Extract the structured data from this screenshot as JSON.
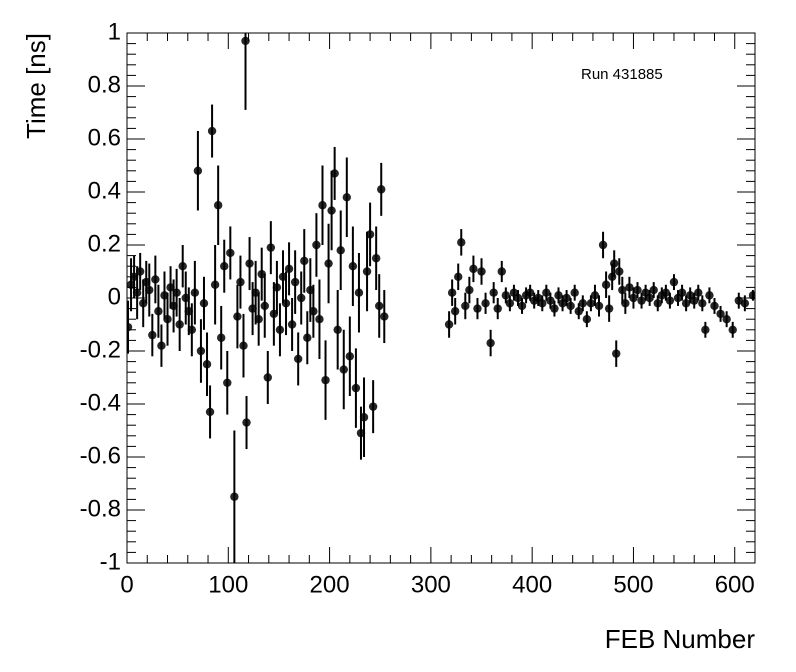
{
  "chart_data": {
    "type": "scatter",
    "title": "Run 431885",
    "x_label": "FEB Number",
    "y_label": "Time [ns]",
    "xlim": [
      0,
      620
    ],
    "xticks": [
      0,
      100,
      200,
      300,
      400,
      500,
      600
    ],
    "ylim": [
      -1,
      1
    ],
    "yticks": [
      -1,
      -0.8,
      -0.6,
      -0.4,
      -0.2,
      0,
      0.2,
      0.4,
      0.6,
      0.8,
      1
    ],
    "color": "#000000",
    "points": [
      {
        "x": 1,
        "y": -0.11,
        "error": 0.1
      },
      {
        "x": 4,
        "y": 0.05,
        "error": 0.1
      },
      {
        "x": 7,
        "y": 0.08,
        "error": 0.08
      },
      {
        "x": 10,
        "y": 0.02,
        "error": 0.1
      },
      {
        "x": 13,
        "y": 0.1,
        "error": 0.07
      },
      {
        "x": 16,
        "y": -0.02,
        "error": 0.09
      },
      {
        "x": 19,
        "y": 0.06,
        "error": 0.08
      },
      {
        "x": 22,
        "y": 0.03,
        "error": 0.1
      },
      {
        "x": 25,
        "y": -0.14,
        "error": 0.08
      },
      {
        "x": 28,
        "y": 0.07,
        "error": 0.09
      },
      {
        "x": 31,
        "y": -0.05,
        "error": 0.1
      },
      {
        "x": 34,
        "y": -0.18,
        "error": 0.08
      },
      {
        "x": 37,
        "y": 0.01,
        "error": 0.09
      },
      {
        "x": 40,
        "y": -0.08,
        "error": 0.1
      },
      {
        "x": 43,
        "y": 0.04,
        "error": 0.08
      },
      {
        "x": 46,
        "y": -0.03,
        "error": 0.1
      },
      {
        "x": 49,
        "y": 0.02,
        "error": 0.09
      },
      {
        "x": 52,
        "y": -0.1,
        "error": 0.1
      },
      {
        "x": 55,
        "y": 0.12,
        "error": 0.08
      },
      {
        "x": 58,
        "y": 0.0,
        "error": 0.1
      },
      {
        "x": 61,
        "y": -0.05,
        "error": 0.09
      },
      {
        "x": 64,
        "y": -0.12,
        "error": 0.1
      },
      {
        "x": 67,
        "y": 0.02,
        "error": 0.12
      },
      {
        "x": 70,
        "y": 0.48,
        "error": 0.15
      },
      {
        "x": 73,
        "y": -0.2,
        "error": 0.12
      },
      {
        "x": 76,
        "y": -0.02,
        "error": 0.1
      },
      {
        "x": 79,
        "y": -0.25,
        "error": 0.12
      },
      {
        "x": 82,
        "y": -0.43,
        "error": 0.1
      },
      {
        "x": 84,
        "y": 0.63,
        "error": 0.1
      },
      {
        "x": 87,
        "y": 0.05,
        "error": 0.15
      },
      {
        "x": 90,
        "y": 0.35,
        "error": 0.15
      },
      {
        "x": 93,
        "y": -0.15,
        "error": 0.12
      },
      {
        "x": 96,
        "y": 0.12,
        "error": 0.1
      },
      {
        "x": 99,
        "y": -0.32,
        "error": 0.12
      },
      {
        "x": 102,
        "y": 0.17,
        "error": 0.1
      },
      {
        "x": 106,
        "y": -0.75,
        "error": 0.25
      },
      {
        "x": 109,
        "y": -0.07,
        "error": 0.12
      },
      {
        "x": 112,
        "y": 0.06,
        "error": 0.1
      },
      {
        "x": 115,
        "y": -0.18,
        "error": 0.12
      },
      {
        "x": 117,
        "y": 0.97,
        "error": 0.26
      },
      {
        "x": 118,
        "y": -0.47,
        "error": 0.1
      },
      {
        "x": 121,
        "y": 0.13,
        "error": 0.1
      },
      {
        "x": 124,
        "y": -0.04,
        "error": 0.1
      },
      {
        "x": 127,
        "y": 0.02,
        "error": 0.12
      },
      {
        "x": 130,
        "y": -0.08,
        "error": 0.1
      },
      {
        "x": 133,
        "y": 0.09,
        "error": 0.1
      },
      {
        "x": 136,
        "y": -0.03,
        "error": 0.12
      },
      {
        "x": 139,
        "y": -0.3,
        "error": 0.1
      },
      {
        "x": 142,
        "y": 0.19,
        "error": 0.1
      },
      {
        "x": 145,
        "y": -0.06,
        "error": 0.12
      },
      {
        "x": 148,
        "y": 0.04,
        "error": 0.1
      },
      {
        "x": 151,
        "y": -0.12,
        "error": 0.1
      },
      {
        "x": 154,
        "y": 0.08,
        "error": 0.1
      },
      {
        "x": 157,
        "y": -0.02,
        "error": 0.12
      },
      {
        "x": 160,
        "y": 0.11,
        "error": 0.1
      },
      {
        "x": 163,
        "y": -0.1,
        "error": 0.1
      },
      {
        "x": 166,
        "y": 0.06,
        "error": 0.12
      },
      {
        "x": 169,
        "y": -0.23,
        "error": 0.1
      },
      {
        "x": 172,
        "y": 0.0,
        "error": 0.1
      },
      {
        "x": 175,
        "y": 0.14,
        "error": 0.12
      },
      {
        "x": 178,
        "y": -0.15,
        "error": 0.1
      },
      {
        "x": 181,
        "y": 0.03,
        "error": 0.12
      },
      {
        "x": 184,
        "y": -0.05,
        "error": 0.1
      },
      {
        "x": 187,
        "y": 0.2,
        "error": 0.12
      },
      {
        "x": 190,
        "y": -0.08,
        "error": 0.15
      },
      {
        "x": 193,
        "y": 0.35,
        "error": 0.15
      },
      {
        "x": 196,
        "y": -0.31,
        "error": 0.15
      },
      {
        "x": 199,
        "y": 0.13,
        "error": 0.15
      },
      {
        "x": 202,
        "y": 0.33,
        "error": 0.15
      },
      {
        "x": 205,
        "y": 0.47,
        "error": 0.1
      },
      {
        "x": 208,
        "y": -0.12,
        "error": 0.15
      },
      {
        "x": 211,
        "y": 0.18,
        "error": 0.15
      },
      {
        "x": 214,
        "y": -0.27,
        "error": 0.15
      },
      {
        "x": 217,
        "y": 0.38,
        "error": 0.15
      },
      {
        "x": 220,
        "y": -0.22,
        "error": 0.15
      },
      {
        "x": 223,
        "y": 0.12,
        "error": 0.15
      },
      {
        "x": 226,
        "y": -0.34,
        "error": 0.15
      },
      {
        "x": 229,
        "y": 0.02,
        "error": 0.15
      },
      {
        "x": 231,
        "y": -0.51,
        "error": 0.1
      },
      {
        "x": 234,
        "y": -0.45,
        "error": 0.15
      },
      {
        "x": 237,
        "y": 0.1,
        "error": 0.15
      },
      {
        "x": 240,
        "y": 0.24,
        "error": 0.12
      },
      {
        "x": 243,
        "y": -0.41,
        "error": 0.1
      },
      {
        "x": 246,
        "y": 0.15,
        "error": 0.12
      },
      {
        "x": 249,
        "y": -0.03,
        "error": 0.12
      },
      {
        "x": 251,
        "y": 0.41,
        "error": 0.1
      },
      {
        "x": 254,
        "y": -0.07,
        "error": 0.1
      },
      {
        "x": 318,
        "y": -0.1,
        "error": 0.05
      },
      {
        "x": 321,
        "y": 0.02,
        "error": 0.05
      },
      {
        "x": 324,
        "y": -0.05,
        "error": 0.05
      },
      {
        "x": 327,
        "y": 0.08,
        "error": 0.05
      },
      {
        "x": 330,
        "y": 0.21,
        "error": 0.05
      },
      {
        "x": 334,
        "y": -0.03,
        "error": 0.05
      },
      {
        "x": 338,
        "y": 0.03,
        "error": 0.05
      },
      {
        "x": 342,
        "y": 0.11,
        "error": 0.05
      },
      {
        "x": 346,
        "y": -0.04,
        "error": 0.04
      },
      {
        "x": 350,
        "y": 0.1,
        "error": 0.05
      },
      {
        "x": 354,
        "y": -0.02,
        "error": 0.04
      },
      {
        "x": 359,
        "y": -0.17,
        "error": 0.05
      },
      {
        "x": 362,
        "y": 0.02,
        "error": 0.04
      },
      {
        "x": 366,
        "y": -0.04,
        "error": 0.04
      },
      {
        "x": 370,
        "y": 0.1,
        "error": 0.04
      },
      {
        "x": 374,
        "y": 0.01,
        "error": 0.03
      },
      {
        "x": 378,
        "y": -0.02,
        "error": 0.03
      },
      {
        "x": 382,
        "y": 0.02,
        "error": 0.03
      },
      {
        "x": 386,
        "y": 0.0,
        "error": 0.03
      },
      {
        "x": 390,
        "y": -0.03,
        "error": 0.03
      },
      {
        "x": 394,
        "y": 0.01,
        "error": 0.03
      },
      {
        "x": 398,
        "y": 0.02,
        "error": 0.03
      },
      {
        "x": 402,
        "y": -0.01,
        "error": 0.03
      },
      {
        "x": 406,
        "y": 0.0,
        "error": 0.03
      },
      {
        "x": 410,
        "y": -0.02,
        "error": 0.03
      },
      {
        "x": 414,
        "y": 0.02,
        "error": 0.03
      },
      {
        "x": 418,
        "y": -0.01,
        "error": 0.03
      },
      {
        "x": 422,
        "y": -0.04,
        "error": 0.03
      },
      {
        "x": 426,
        "y": 0.01,
        "error": 0.03
      },
      {
        "x": 430,
        "y": -0.02,
        "error": 0.03
      },
      {
        "x": 434,
        "y": 0.0,
        "error": 0.03
      },
      {
        "x": 438,
        "y": -0.03,
        "error": 0.03
      },
      {
        "x": 442,
        "y": 0.02,
        "error": 0.03
      },
      {
        "x": 446,
        "y": -0.05,
        "error": 0.03
      },
      {
        "x": 450,
        "y": -0.02,
        "error": 0.03
      },
      {
        "x": 454,
        "y": -0.08,
        "error": 0.03
      },
      {
        "x": 458,
        "y": -0.02,
        "error": 0.03
      },
      {
        "x": 462,
        "y": 0.01,
        "error": 0.04
      },
      {
        "x": 466,
        "y": -0.03,
        "error": 0.04
      },
      {
        "x": 470,
        "y": 0.2,
        "error": 0.05
      },
      {
        "x": 473,
        "y": 0.05,
        "error": 0.05
      },
      {
        "x": 476,
        "y": -0.04,
        "error": 0.05
      },
      {
        "x": 479,
        "y": 0.08,
        "error": 0.05
      },
      {
        "x": 481,
        "y": 0.13,
        "error": 0.05
      },
      {
        "x": 483,
        "y": -0.21,
        "error": 0.05
      },
      {
        "x": 486,
        "y": 0.1,
        "error": 0.05
      },
      {
        "x": 489,
        "y": 0.03,
        "error": 0.05
      },
      {
        "x": 492,
        "y": -0.02,
        "error": 0.04
      },
      {
        "x": 496,
        "y": 0.04,
        "error": 0.04
      },
      {
        "x": 500,
        "y": 0.0,
        "error": 0.04
      },
      {
        "x": 504,
        "y": 0.03,
        "error": 0.03
      },
      {
        "x": 508,
        "y": -0.01,
        "error": 0.03
      },
      {
        "x": 512,
        "y": 0.02,
        "error": 0.03
      },
      {
        "x": 516,
        "y": 0.0,
        "error": 0.03
      },
      {
        "x": 520,
        "y": 0.03,
        "error": 0.03
      },
      {
        "x": 524,
        "y": -0.02,
        "error": 0.03
      },
      {
        "x": 528,
        "y": 0.01,
        "error": 0.03
      },
      {
        "x": 532,
        "y": 0.02,
        "error": 0.03
      },
      {
        "x": 536,
        "y": -0.01,
        "error": 0.03
      },
      {
        "x": 540,
        "y": 0.06,
        "error": 0.03
      },
      {
        "x": 544,
        "y": 0.0,
        "error": 0.03
      },
      {
        "x": 548,
        "y": 0.02,
        "error": 0.03
      },
      {
        "x": 552,
        "y": -0.02,
        "error": 0.03
      },
      {
        "x": 556,
        "y": 0.01,
        "error": 0.03
      },
      {
        "x": 560,
        "y": -0.01,
        "error": 0.03
      },
      {
        "x": 564,
        "y": 0.02,
        "error": 0.03
      },
      {
        "x": 568,
        "y": -0.02,
        "error": 0.03
      },
      {
        "x": 571,
        "y": -0.12,
        "error": 0.03
      },
      {
        "x": 575,
        "y": 0.01,
        "error": 0.03
      },
      {
        "x": 580,
        "y": -0.03,
        "error": 0.03
      },
      {
        "x": 586,
        "y": -0.06,
        "error": 0.03
      },
      {
        "x": 592,
        "y": -0.08,
        "error": 0.03
      },
      {
        "x": 598,
        "y": -0.12,
        "error": 0.03
      },
      {
        "x": 604,
        "y": -0.01,
        "error": 0.03
      },
      {
        "x": 610,
        "y": -0.02,
        "error": 0.03
      },
      {
        "x": 618,
        "y": 0.01,
        "error": 0.02
      }
    ]
  }
}
